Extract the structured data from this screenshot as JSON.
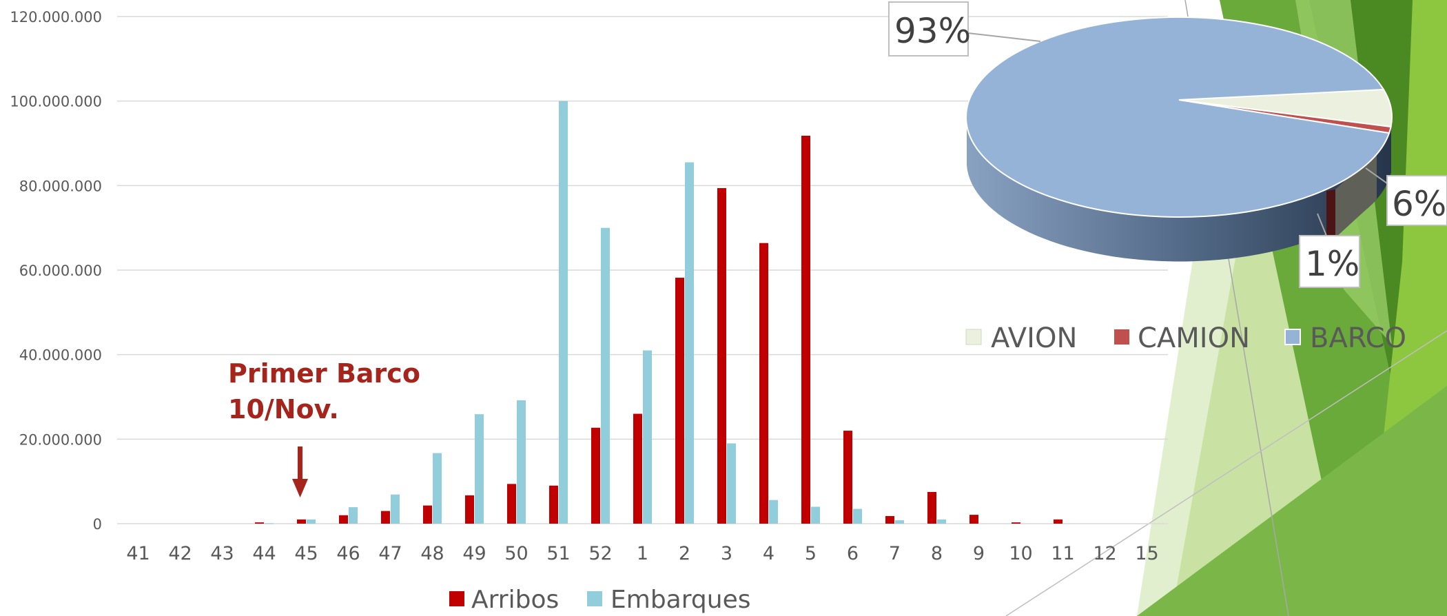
{
  "chart_data": [
    {
      "type": "bar",
      "title": "",
      "xlabel": "",
      "ylabel": "",
      "ylim": [
        0,
        120000000
      ],
      "yticks": [
        0,
        20000000,
        40000000,
        60000000,
        80000000,
        100000000,
        120000000
      ],
      "ytick_labels": [
        "0",
        "20.000.000",
        "40.000.000",
        "60.000.000",
        "80.000.000",
        "100.000.000",
        "120.000.000"
      ],
      "grid": true,
      "legend_position": "bottom",
      "categories": [
        "41",
        "42",
        "43",
        "44",
        "45",
        "46",
        "47",
        "48",
        "49",
        "50",
        "51",
        "52",
        "1",
        "2",
        "3",
        "4",
        "5",
        "6",
        "7",
        "8",
        "9",
        "10",
        "11",
        "12",
        "15"
      ],
      "series": [
        {
          "name": "Arribos",
          "color": "#c00000",
          "values": [
            0,
            0,
            0,
            300000,
            1000000,
            2000000,
            3000000,
            4300000,
            6700000,
            9400000,
            9000000,
            22700000,
            26000000,
            58200000,
            79400000,
            66400000,
            91800000,
            22000000,
            1800000,
            7500000,
            2100000,
            300000,
            1000000,
            0,
            0
          ]
        },
        {
          "name": "Embarques",
          "color": "#92cddc",
          "values": [
            0,
            0,
            0,
            100000,
            1000000,
            3900000,
            6900000,
            16700000,
            25900000,
            29200000,
            100000000,
            70000000,
            41000000,
            85500000,
            19000000,
            5600000,
            4000000,
            3500000,
            800000,
            1000000,
            0,
            0,
            0,
            0,
            0
          ]
        }
      ],
      "annotation": {
        "line1": "Primer Barco",
        "line2": "10/Nov.",
        "category": "45"
      }
    },
    {
      "type": "pie",
      "style": "3d",
      "title": "",
      "legend_position": "bottom",
      "slices": [
        {
          "name": "AVION",
          "value": 6,
          "label": "6%",
          "color": "#ebf1de"
        },
        {
          "name": "CAMION",
          "value": 1,
          "label": "1%",
          "color": "#c0504d"
        },
        {
          "name": "BARCO",
          "value": 93,
          "label": "93%",
          "color": "#95b3d7"
        }
      ]
    }
  ],
  "theme": {
    "accent_green": "#6aaa3a",
    "light_green": "#c9e2a3",
    "dark_green": "#4b8a22"
  }
}
